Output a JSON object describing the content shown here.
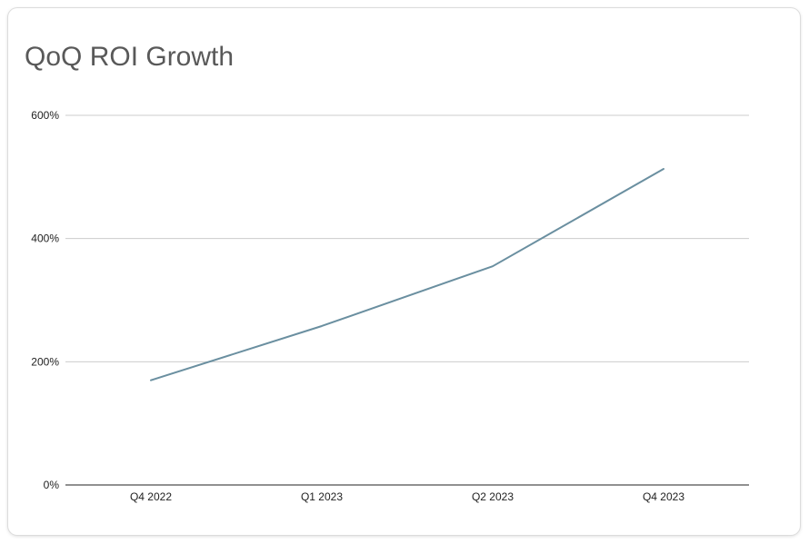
{
  "chart_data": {
    "type": "line",
    "title": "QoQ ROI Growth",
    "categories": [
      "Q4 2022",
      "Q1 2023",
      "Q2 2023",
      "Q4 2023"
    ],
    "series": [
      {
        "values": [
          170,
          258,
          355,
          513
        ]
      }
    ],
    "yticks": [
      "0%",
      "200%",
      "400%",
      "600%"
    ],
    "ytick_values": [
      0,
      200,
      400,
      600
    ],
    "ylim": [
      0,
      600
    ],
    "xlabel": "",
    "ylabel": "",
    "grid": true,
    "legend": "none",
    "line_color": "#6a8fa0",
    "grid_color": "#cccccc",
    "axis_color": "#222222"
  }
}
